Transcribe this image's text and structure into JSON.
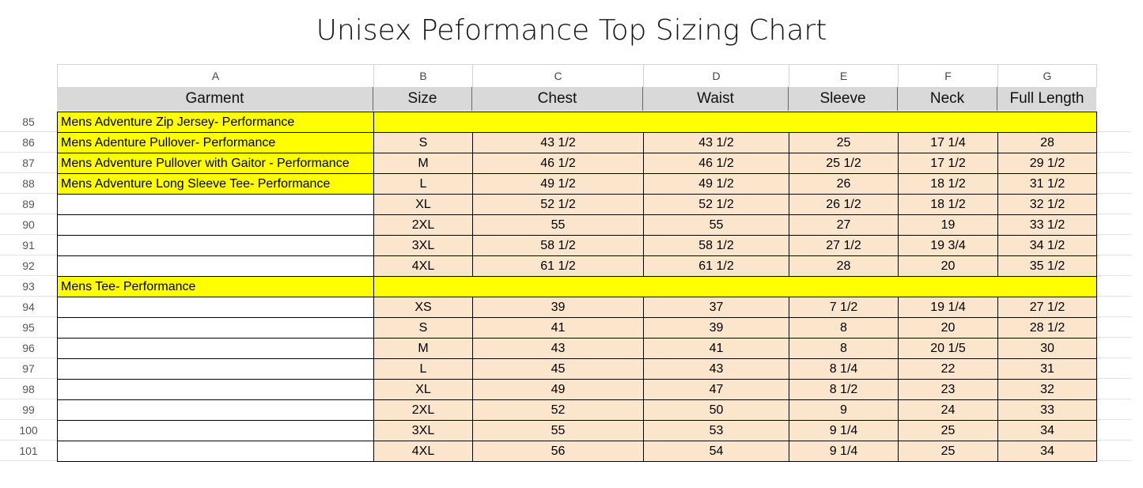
{
  "title": "Unisex Peformance Top Sizing Chart",
  "columns": [
    "A",
    "B",
    "C",
    "D",
    "E",
    "F",
    "G"
  ],
  "headers": [
    "Garment",
    "Size",
    "Chest",
    "Waist",
    "Sleeve",
    "Neck",
    "Full Length"
  ],
  "rows": [
    {
      "row": 85,
      "garment": "Mens Adventure Zip Jersey- Performance"
    },
    {
      "row": 86,
      "garment": "Mens Adenture Pullover- Performance",
      "values": [
        "S",
        "43 1/2",
        "43 1/2",
        "25",
        "17 1/4",
        "28"
      ]
    },
    {
      "row": 87,
      "garment": "Mens Adventure Pullover with Gaitor - Performance",
      "values": [
        "M",
        "46 1/2",
        "46 1/2",
        "25 1/2",
        "17 1/2",
        "29 1/2"
      ]
    },
    {
      "row": 88,
      "garment": "Mens Adventure Long Sleeve Tee- Performance",
      "values": [
        "L",
        "49 1/2",
        "49 1/2",
        "26",
        "18 1/2",
        "31 1/2"
      ]
    },
    {
      "row": 89,
      "values": [
        "XL",
        "52 1/2",
        "52 1/2",
        "26 1/2",
        "18 1/2",
        "32 1/2"
      ]
    },
    {
      "row": 90,
      "values": [
        "2XL",
        "55",
        "55",
        "27",
        "19",
        "33 1/2"
      ]
    },
    {
      "row": 91,
      "values": [
        "3XL",
        "58 1/2",
        "58 1/2",
        "27 1/2",
        "19 3/4",
        "34 1/2"
      ]
    },
    {
      "row": 92,
      "values": [
        "4XL",
        "61 1/2",
        "61 1/2",
        "28",
        "20",
        "35 1/2"
      ]
    },
    {
      "row": 93,
      "garment": "Mens Tee- Performance"
    },
    {
      "row": 94,
      "values": [
        "XS",
        "39",
        "37",
        "7 1/2",
        "19 1/4",
        "27 1/2"
      ]
    },
    {
      "row": 95,
      "values": [
        "S",
        "41",
        "39",
        "8",
        "20",
        "28 1/2"
      ]
    },
    {
      "row": 96,
      "values": [
        "M",
        "43",
        "41",
        "8",
        "20 1/5",
        "30"
      ]
    },
    {
      "row": 97,
      "values": [
        "L",
        "45",
        "43",
        "8 1/4",
        "22",
        "31"
      ]
    },
    {
      "row": 98,
      "values": [
        "XL",
        "49",
        "47",
        "8 1/2",
        "23",
        "32"
      ]
    },
    {
      "row": 99,
      "values": [
        "2XL",
        "52",
        "50",
        "9",
        "24",
        "33"
      ]
    },
    {
      "row": 100,
      "values": [
        "3XL",
        "55",
        "53",
        "9 1/4",
        "25",
        "34"
      ]
    },
    {
      "row": 101,
      "values": [
        "4XL",
        "56",
        "54",
        "9 1/4",
        "25",
        "34"
      ]
    }
  ]
}
